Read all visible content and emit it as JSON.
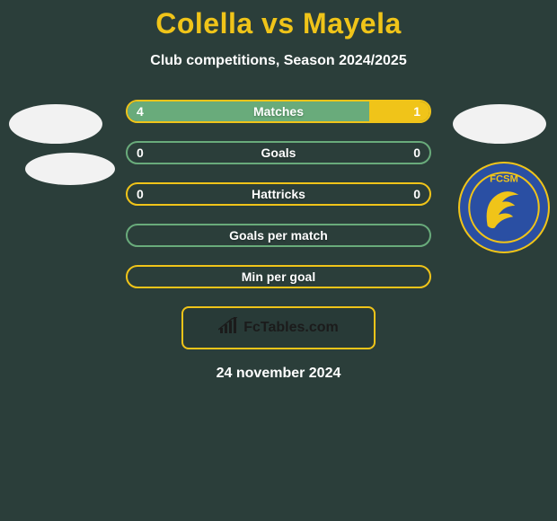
{
  "title": "Colella vs Mayela",
  "subtitle": "Club competitions, Season 2024/2025",
  "date": "24 november 2024",
  "logo_text": "FcTables.com",
  "colors": {
    "background": "#2b3e3a",
    "accent": "#f0c419",
    "fill_alt": "#69ab7b",
    "text": "#ffffff",
    "badge_bg": "#f2f2f2",
    "crest_blue": "#2a4fa3",
    "crest_gold": "#f0c419"
  },
  "left_badge": {
    "name": "colella-club-badge"
  },
  "right_badge": {
    "name": "mayela-club-badge",
    "crest_text": "FCSM"
  },
  "bars": [
    {
      "label": "Matches",
      "left_value": "4",
      "right_value": "1",
      "left_fill_pct": 80,
      "right_fill_pct": 20,
      "border_color": "#f0c419",
      "left_fill_color": "#69ab7b",
      "right_fill_color": "#f0c419"
    },
    {
      "label": "Goals",
      "left_value": "0",
      "right_value": "0",
      "left_fill_pct": 0,
      "right_fill_pct": 0,
      "border_color": "#69ab7b",
      "left_fill_color": "#69ab7b",
      "right_fill_color": "#f0c419"
    },
    {
      "label": "Hattricks",
      "left_value": "0",
      "right_value": "0",
      "left_fill_pct": 0,
      "right_fill_pct": 0,
      "border_color": "#f0c419",
      "left_fill_color": "#69ab7b",
      "right_fill_color": "#f0c419"
    },
    {
      "label": "Goals per match",
      "left_value": "",
      "right_value": "",
      "left_fill_pct": 0,
      "right_fill_pct": 0,
      "border_color": "#69ab7b",
      "left_fill_color": "#69ab7b",
      "right_fill_color": "#f0c419"
    },
    {
      "label": "Min per goal",
      "left_value": "",
      "right_value": "",
      "left_fill_pct": 0,
      "right_fill_pct": 0,
      "border_color": "#f0c419",
      "left_fill_color": "#69ab7b",
      "right_fill_color": "#f0c419"
    }
  ]
}
